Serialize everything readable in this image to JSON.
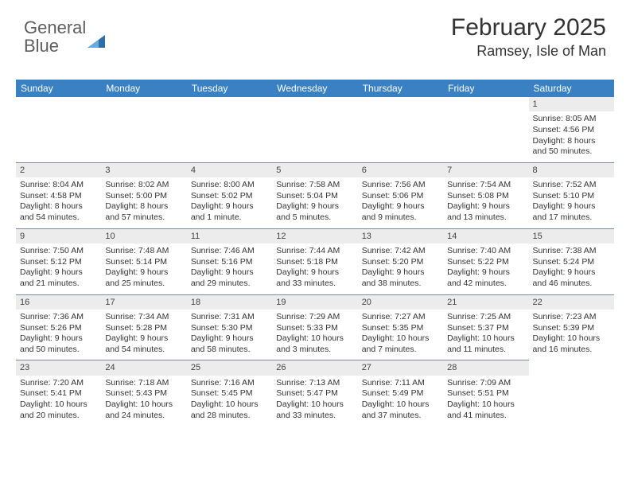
{
  "logo": {
    "text1": "General",
    "text2": "Blue",
    "tri_color": "#2f6fa8"
  },
  "title": "February 2025",
  "location": "Ramsey, Isle of Man",
  "header_bg": "#3a81c4",
  "daynum_bg": "#ececec",
  "row_border": "#7a8aa0",
  "weekdays": [
    "Sunday",
    "Monday",
    "Tuesday",
    "Wednesday",
    "Thursday",
    "Friday",
    "Saturday"
  ],
  "weeks": [
    [
      {
        "blank": true
      },
      {
        "blank": true
      },
      {
        "blank": true
      },
      {
        "blank": true
      },
      {
        "blank": true
      },
      {
        "blank": true
      },
      {
        "day": "1",
        "sunrise": "Sunrise: 8:05 AM",
        "sunset": "Sunset: 4:56 PM",
        "daylight": "Daylight: 8 hours and 50 minutes."
      }
    ],
    [
      {
        "day": "2",
        "sunrise": "Sunrise: 8:04 AM",
        "sunset": "Sunset: 4:58 PM",
        "daylight": "Daylight: 8 hours and 54 minutes."
      },
      {
        "day": "3",
        "sunrise": "Sunrise: 8:02 AM",
        "sunset": "Sunset: 5:00 PM",
        "daylight": "Daylight: 8 hours and 57 minutes."
      },
      {
        "day": "4",
        "sunrise": "Sunrise: 8:00 AM",
        "sunset": "Sunset: 5:02 PM",
        "daylight": "Daylight: 9 hours and 1 minute."
      },
      {
        "day": "5",
        "sunrise": "Sunrise: 7:58 AM",
        "sunset": "Sunset: 5:04 PM",
        "daylight": "Daylight: 9 hours and 5 minutes."
      },
      {
        "day": "6",
        "sunrise": "Sunrise: 7:56 AM",
        "sunset": "Sunset: 5:06 PM",
        "daylight": "Daylight: 9 hours and 9 minutes."
      },
      {
        "day": "7",
        "sunrise": "Sunrise: 7:54 AM",
        "sunset": "Sunset: 5:08 PM",
        "daylight": "Daylight: 9 hours and 13 minutes."
      },
      {
        "day": "8",
        "sunrise": "Sunrise: 7:52 AM",
        "sunset": "Sunset: 5:10 PM",
        "daylight": "Daylight: 9 hours and 17 minutes."
      }
    ],
    [
      {
        "day": "9",
        "sunrise": "Sunrise: 7:50 AM",
        "sunset": "Sunset: 5:12 PM",
        "daylight": "Daylight: 9 hours and 21 minutes."
      },
      {
        "day": "10",
        "sunrise": "Sunrise: 7:48 AM",
        "sunset": "Sunset: 5:14 PM",
        "daylight": "Daylight: 9 hours and 25 minutes."
      },
      {
        "day": "11",
        "sunrise": "Sunrise: 7:46 AM",
        "sunset": "Sunset: 5:16 PM",
        "daylight": "Daylight: 9 hours and 29 minutes."
      },
      {
        "day": "12",
        "sunrise": "Sunrise: 7:44 AM",
        "sunset": "Sunset: 5:18 PM",
        "daylight": "Daylight: 9 hours and 33 minutes."
      },
      {
        "day": "13",
        "sunrise": "Sunrise: 7:42 AM",
        "sunset": "Sunset: 5:20 PM",
        "daylight": "Daylight: 9 hours and 38 minutes."
      },
      {
        "day": "14",
        "sunrise": "Sunrise: 7:40 AM",
        "sunset": "Sunset: 5:22 PM",
        "daylight": "Daylight: 9 hours and 42 minutes."
      },
      {
        "day": "15",
        "sunrise": "Sunrise: 7:38 AM",
        "sunset": "Sunset: 5:24 PM",
        "daylight": "Daylight: 9 hours and 46 minutes."
      }
    ],
    [
      {
        "day": "16",
        "sunrise": "Sunrise: 7:36 AM",
        "sunset": "Sunset: 5:26 PM",
        "daylight": "Daylight: 9 hours and 50 minutes."
      },
      {
        "day": "17",
        "sunrise": "Sunrise: 7:34 AM",
        "sunset": "Sunset: 5:28 PM",
        "daylight": "Daylight: 9 hours and 54 minutes."
      },
      {
        "day": "18",
        "sunrise": "Sunrise: 7:31 AM",
        "sunset": "Sunset: 5:30 PM",
        "daylight": "Daylight: 9 hours and 58 minutes."
      },
      {
        "day": "19",
        "sunrise": "Sunrise: 7:29 AM",
        "sunset": "Sunset: 5:33 PM",
        "daylight": "Daylight: 10 hours and 3 minutes."
      },
      {
        "day": "20",
        "sunrise": "Sunrise: 7:27 AM",
        "sunset": "Sunset: 5:35 PM",
        "daylight": "Daylight: 10 hours and 7 minutes."
      },
      {
        "day": "21",
        "sunrise": "Sunrise: 7:25 AM",
        "sunset": "Sunset: 5:37 PM",
        "daylight": "Daylight: 10 hours and 11 minutes."
      },
      {
        "day": "22",
        "sunrise": "Sunrise: 7:23 AM",
        "sunset": "Sunset: 5:39 PM",
        "daylight": "Daylight: 10 hours and 16 minutes."
      }
    ],
    [
      {
        "day": "23",
        "sunrise": "Sunrise: 7:20 AM",
        "sunset": "Sunset: 5:41 PM",
        "daylight": "Daylight: 10 hours and 20 minutes."
      },
      {
        "day": "24",
        "sunrise": "Sunrise: 7:18 AM",
        "sunset": "Sunset: 5:43 PM",
        "daylight": "Daylight: 10 hours and 24 minutes."
      },
      {
        "day": "25",
        "sunrise": "Sunrise: 7:16 AM",
        "sunset": "Sunset: 5:45 PM",
        "daylight": "Daylight: 10 hours and 28 minutes."
      },
      {
        "day": "26",
        "sunrise": "Sunrise: 7:13 AM",
        "sunset": "Sunset: 5:47 PM",
        "daylight": "Daylight: 10 hours and 33 minutes."
      },
      {
        "day": "27",
        "sunrise": "Sunrise: 7:11 AM",
        "sunset": "Sunset: 5:49 PM",
        "daylight": "Daylight: 10 hours and 37 minutes."
      },
      {
        "day": "28",
        "sunrise": "Sunrise: 7:09 AM",
        "sunset": "Sunset: 5:51 PM",
        "daylight": "Daylight: 10 hours and 41 minutes."
      },
      {
        "blank": true,
        "noTop": true
      }
    ]
  ]
}
